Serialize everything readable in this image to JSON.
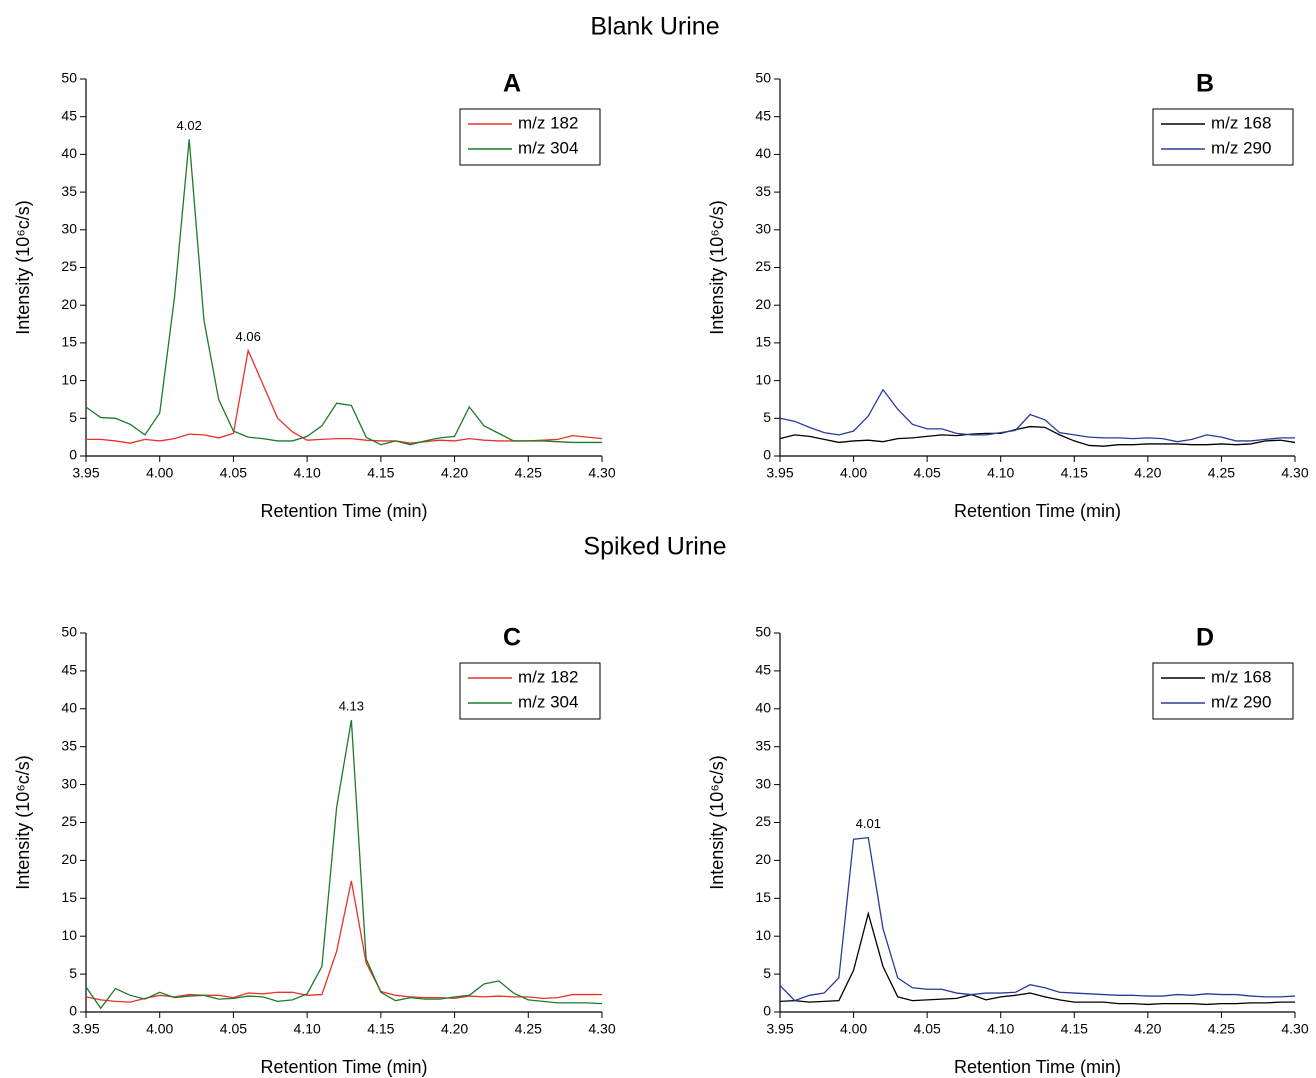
{
  "headings": [
    "Blank Urine",
    "Spiked Urine"
  ],
  "chart_data": [
    {
      "type": "line",
      "title": "A",
      "x_label": "Retention Time (min)",
      "y_label": "Intensity (10⁶c/s)",
      "x": [
        3.95,
        3.96,
        3.97,
        3.98,
        3.99,
        4.0,
        4.01,
        4.02,
        4.03,
        4.04,
        4.05,
        4.06,
        4.07,
        4.08,
        4.09,
        4.1,
        4.11,
        4.12,
        4.13,
        4.14,
        4.15,
        4.16,
        4.17,
        4.18,
        4.19,
        4.2,
        4.21,
        4.22,
        4.23,
        4.24,
        4.25,
        4.26,
        4.27,
        4.28,
        4.29,
        4.3
      ],
      "series": [
        {
          "name": "m/z 182",
          "color": "#e8322a",
          "values": [
            2.2,
            2.2,
            2.0,
            1.7,
            2.2,
            2.0,
            2.3,
            2.9,
            2.8,
            2.4,
            3.0,
            14.0,
            9.5,
            5.0,
            3.2,
            2.1,
            2.2,
            2.3,
            2.3,
            2.1,
            2.0,
            2.0,
            1.7,
            1.9,
            2.1,
            2.0,
            2.3,
            2.1,
            2.0,
            2.0,
            2.0,
            2.1,
            2.2,
            2.7,
            2.5,
            2.3
          ]
        },
        {
          "name": "m/z 304",
          "color": "#1e7a2a",
          "values": [
            6.5,
            5.1,
            5.0,
            4.2,
            2.8,
            5.7,
            21,
            42,
            18,
            7.5,
            3.3,
            2.5,
            2.3,
            2.0,
            2.0,
            2.6,
            4.0,
            7.0,
            6.7,
            2.5,
            1.5,
            2.0,
            1.5,
            2.0,
            2.4,
            2.6,
            6.5,
            4.0,
            3.0,
            2.0,
            2.0,
            2.0,
            1.9,
            1.8,
            1.8,
            1.8
          ]
        }
      ],
      "annotations": [
        {
          "text": "4.02",
          "x": 4.02
        },
        {
          "text": "4.06",
          "x": 4.06
        }
      ],
      "xlim": [
        3.95,
        4.3
      ],
      "xticks": [
        3.95,
        {
          "value": 4,
          "label": "4.00"
        },
        4.05,
        {
          "value": 4.1,
          "label": "4.10"
        },
        4.15,
        {
          "value": 4.2,
          "label": "4.20"
        },
        4.25,
        {
          "value": 4.3,
          "label": "4.30"
        }
      ],
      "ylim": [
        0,
        50
      ],
      "yticks": [
        0,
        5,
        10,
        15,
        20,
        25,
        30,
        35,
        40,
        45,
        50
      ],
      "grid": false,
      "legend": "upper right"
    },
    {
      "type": "line",
      "title": "B",
      "x_label": "Retention Time (min)",
      "y_label": "Intensity (10⁶c/s)",
      "x": [
        3.95,
        3.96,
        3.97,
        3.98,
        3.99,
        4.0,
        4.01,
        4.02,
        4.03,
        4.04,
        4.05,
        4.06,
        4.07,
        4.08,
        4.09,
        4.1,
        4.11,
        4.12,
        4.13,
        4.14,
        4.15,
        4.16,
        4.17,
        4.18,
        4.19,
        4.2,
        4.21,
        4.22,
        4.23,
        4.24,
        4.25,
        4.26,
        4.27,
        4.28,
        4.29,
        4.3
      ],
      "series": [
        {
          "name": "m/z 168",
          "color": "#000000",
          "values": [
            2.3,
            2.8,
            2.6,
            2.2,
            1.8,
            2.0,
            2.1,
            1.9,
            2.3,
            2.4,
            2.6,
            2.8,
            2.7,
            2.9,
            3.0,
            3.0,
            3.5,
            3.9,
            3.8,
            2.8,
            2.0,
            1.4,
            1.3,
            1.5,
            1.5,
            1.6,
            1.6,
            1.6,
            1.5,
            1.5,
            1.6,
            1.5,
            1.6,
            2.0,
            2.1,
            1.8
          ]
        },
        {
          "name": "m/z 290",
          "color": "#2a3a9a",
          "values": [
            5.0,
            4.6,
            3.8,
            3.1,
            2.8,
            3.3,
            5.3,
            8.8,
            6.2,
            4.2,
            3.6,
            3.6,
            3.0,
            2.8,
            2.8,
            3.1,
            3.4,
            5.5,
            4.8,
            3.1,
            2.8,
            2.5,
            2.4,
            2.4,
            2.3,
            2.4,
            2.3,
            1.9,
            2.2,
            2.8,
            2.5,
            2.0,
            2.0,
            2.2,
            2.4,
            2.4
          ]
        }
      ],
      "annotations": [],
      "xlim": [
        3.95,
        4.3
      ],
      "xticks": [
        3.95,
        {
          "value": 4,
          "label": "4.00"
        },
        4.05,
        {
          "value": 4.1,
          "label": "4.10"
        },
        4.15,
        {
          "value": 4.2,
          "label": "4.20"
        },
        4.25,
        {
          "value": 4.3,
          "label": "4.30"
        }
      ],
      "ylim": [
        0,
        50
      ],
      "yticks": [
        0,
        5,
        10,
        15,
        20,
        25,
        30,
        35,
        40,
        45,
        50
      ],
      "grid": false,
      "legend": "upper right"
    },
    {
      "type": "line",
      "title": "C",
      "x_label": "Retention Time (min)",
      "y_label": "Intensity (10⁶c/s)",
      "x": [
        3.95,
        3.96,
        3.97,
        3.98,
        3.99,
        4.0,
        4.01,
        4.02,
        4.03,
        4.04,
        4.05,
        4.06,
        4.07,
        4.08,
        4.09,
        4.1,
        4.11,
        4.12,
        4.13,
        4.14,
        4.15,
        4.16,
        4.17,
        4.18,
        4.19,
        4.2,
        4.21,
        4.22,
        4.23,
        4.24,
        4.25,
        4.26,
        4.27,
        4.28,
        4.29,
        4.3
      ],
      "series": [
        {
          "name": "m/z 182",
          "color": "#e8322a",
          "values": [
            2.0,
            1.6,
            1.4,
            1.3,
            1.8,
            2.2,
            2.0,
            2.3,
            2.2,
            2.2,
            1.9,
            2.5,
            2.4,
            2.6,
            2.6,
            2.2,
            2.3,
            8.0,
            17.3,
            6.5,
            2.7,
            2.2,
            2.0,
            1.9,
            1.9,
            1.8,
            2.1,
            2.0,
            2.1,
            2.0,
            2.0,
            1.8,
            1.9,
            2.3,
            2.3,
            2.3
          ]
        },
        {
          "name": "m/z 304",
          "color": "#1e7a2a",
          "values": [
            3.3,
            0.5,
            3.1,
            2.2,
            1.7,
            2.6,
            1.9,
            2.1,
            2.2,
            1.7,
            1.8,
            2.1,
            2.0,
            1.4,
            1.6,
            2.4,
            6.0,
            27,
            38.5,
            7.0,
            2.6,
            1.5,
            1.9,
            1.7,
            1.7,
            2.0,
            2.2,
            3.7,
            4.1,
            2.5,
            1.6,
            1.4,
            1.2,
            1.2,
            1.2,
            1.1
          ]
        }
      ],
      "annotations": [
        {
          "text": "4.13",
          "x": 4.13
        }
      ],
      "xlim": [
        3.95,
        4.3
      ],
      "xticks": [
        3.95,
        {
          "value": 4,
          "label": "4.00"
        },
        4.05,
        {
          "value": 4.1,
          "label": "4.10"
        },
        4.15,
        {
          "value": 4.2,
          "label": "4.20"
        },
        4.25,
        {
          "value": 4.3,
          "label": "4.30"
        }
      ],
      "ylim": [
        0,
        50
      ],
      "yticks": [
        0,
        5,
        10,
        15,
        20,
        25,
        30,
        35,
        40,
        45,
        50
      ],
      "grid": false,
      "legend": "upper right"
    },
    {
      "type": "line",
      "title": "D",
      "x_label": "Retention Time (min)",
      "y_label": "Intensity (10⁶c/s)",
      "x": [
        3.95,
        3.96,
        3.97,
        3.98,
        3.99,
        4.0,
        4.01,
        4.02,
        4.03,
        4.04,
        4.05,
        4.06,
        4.07,
        4.08,
        4.09,
        4.1,
        4.11,
        4.12,
        4.13,
        4.14,
        4.15,
        4.16,
        4.17,
        4.18,
        4.19,
        4.2,
        4.21,
        4.22,
        4.23,
        4.24,
        4.25,
        4.26,
        4.27,
        4.28,
        4.29,
        4.3
      ],
      "series": [
        {
          "name": "m/z 168",
          "color": "#000000",
          "values": [
            1.4,
            1.5,
            1.3,
            1.4,
            1.5,
            5.5,
            13.0,
            6.0,
            2.0,
            1.5,
            1.6,
            1.7,
            1.8,
            2.3,
            1.6,
            2.0,
            2.2,
            2.5,
            2.0,
            1.6,
            1.3,
            1.3,
            1.3,
            1.1,
            1.1,
            1.0,
            1.1,
            1.1,
            1.1,
            1.0,
            1.1,
            1.1,
            1.2,
            1.2,
            1.3,
            1.3
          ]
        },
        {
          "name": "m/z 290",
          "color": "#2a3a9a",
          "values": [
            3.5,
            1.5,
            2.2,
            2.5,
            4.5,
            22.8,
            23.0,
            11.0,
            4.5,
            3.2,
            3.0,
            3.0,
            2.5,
            2.3,
            2.5,
            2.5,
            2.6,
            3.6,
            3.2,
            2.6,
            2.5,
            2.4,
            2.3,
            2.2,
            2.2,
            2.1,
            2.1,
            2.3,
            2.2,
            2.4,
            2.3,
            2.3,
            2.1,
            2.0,
            2.0,
            2.1
          ]
        }
      ],
      "annotations": [
        {
          "text": "4.01",
          "x": 4.01
        }
      ],
      "xlim": [
        3.95,
        4.3
      ],
      "xticks": [
        3.95,
        {
          "value": 4,
          "label": "4.00"
        },
        4.05,
        {
          "value": 4.1,
          "label": "4.10"
        },
        4.15,
        {
          "value": 4.2,
          "label": "4.20"
        },
        4.25,
        {
          "value": 4.3,
          "label": "4.30"
        }
      ],
      "ylim": [
        0,
        50
      ],
      "yticks": [
        0,
        5,
        10,
        15,
        20,
        25,
        30,
        35,
        40,
        45,
        50
      ],
      "grid": false,
      "legend": "upper right"
    }
  ]
}
